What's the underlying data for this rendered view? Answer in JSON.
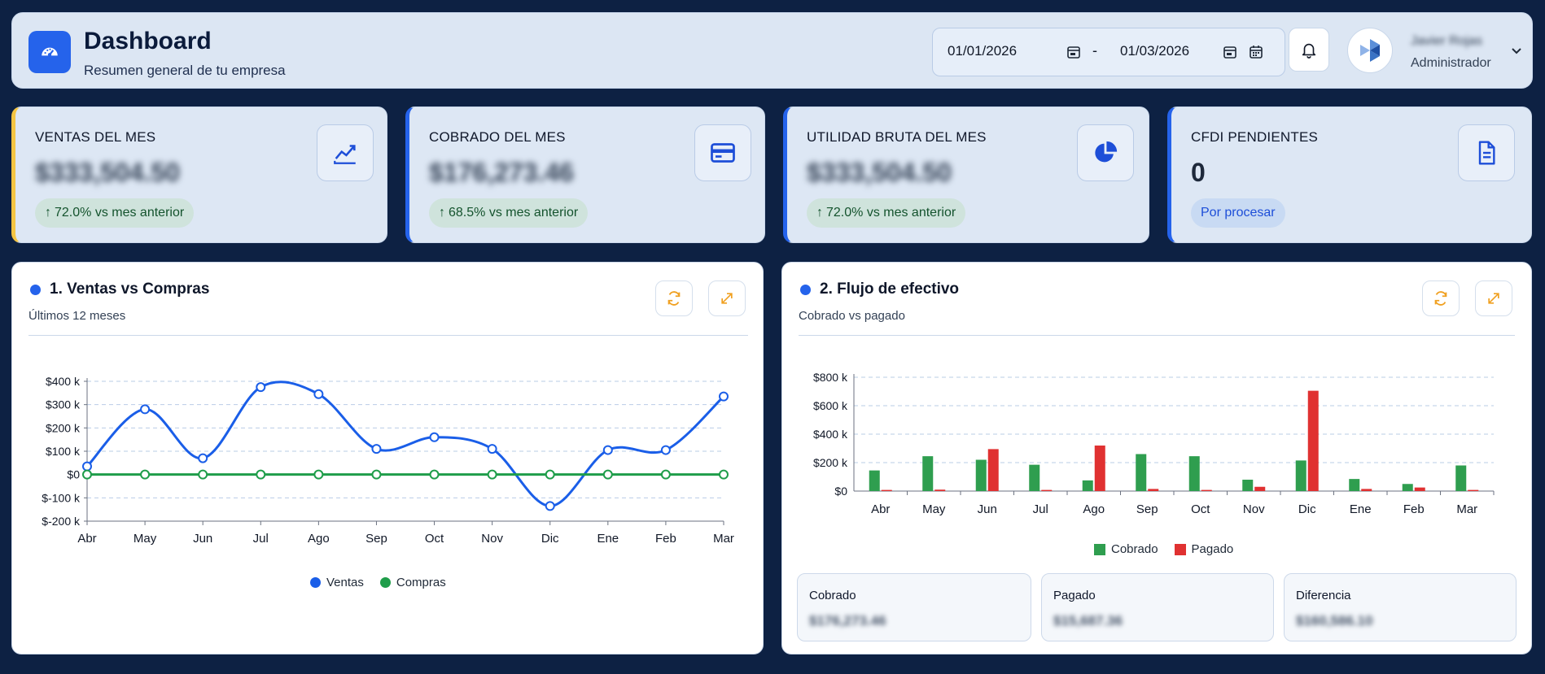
{
  "header": {
    "title": "Dashboard",
    "subtitle": "Resumen general de tu empresa",
    "date_from": "01/01/2026",
    "date_separator": "-",
    "date_to": "01/03/2026",
    "user_name": "Javier Rojas",
    "user_role": "Administrador",
    "logo_icon": "dashboard-gauge-icon",
    "bell_icon": "bell-icon"
  },
  "kpis": [
    {
      "label": "VENTAS DEL MES",
      "value": "$333,504.50",
      "badge": "72.0% vs mes anterior",
      "badge_arrow": "↑",
      "icon": "trend-chart-icon",
      "accent": "#f5c542"
    },
    {
      "label": "COBRADO DEL MES",
      "value": "$176,273.46",
      "badge": "68.5% vs mes anterior",
      "badge_arrow": "↑",
      "icon": "credit-card-icon",
      "accent": "#2563eb"
    },
    {
      "label": "UTILIDAD BRUTA DEL MES",
      "value": "$333,504.50",
      "badge": "72.0% vs mes anterior",
      "badge_arrow": "↑",
      "icon": "pie-chart-icon",
      "accent": "#2563eb"
    },
    {
      "label": "CFDI PENDIENTES",
      "value": "0",
      "badge": "Por procesar",
      "badge_arrow": "",
      "icon": "document-icon",
      "accent": "#2563eb"
    }
  ],
  "cards": {
    "ventas": {
      "title": "1. Ventas vs Compras",
      "subtitle": "Últimos 12 meses"
    },
    "flujo": {
      "title": "2. Flujo de efectivo",
      "subtitle": "Cobrado vs pagado"
    }
  },
  "summary": [
    {
      "label": "Cobrado",
      "value": "$176,273.46"
    },
    {
      "label": "Pagado",
      "value": "$15,687.36"
    },
    {
      "label": "Diferencia",
      "value": "$160,586.10"
    }
  ],
  "colors": {
    "ventas": "#1a5ee8",
    "compras": "#1f9d4a",
    "cobrado": "#2f9e4f",
    "pagado": "#e03131",
    "accent_orange": "#f0a020"
  },
  "chart_data": [
    {
      "type": "line",
      "categories": [
        "Abr",
        "May",
        "Jun",
        "Jul",
        "Ago",
        "Sep",
        "Oct",
        "Nov",
        "Dic",
        "Ene",
        "Feb",
        "Mar"
      ],
      "series": [
        {
          "name": "Ventas",
          "values": [
            35000,
            280000,
            70000,
            375000,
            345000,
            110000,
            160000,
            110000,
            -135000,
            105000,
            105000,
            335000
          ]
        },
        {
          "name": "Compras",
          "values": [
            0,
            0,
            0,
            0,
            0,
            0,
            0,
            0,
            0,
            0,
            0,
            0
          ]
        }
      ],
      "yticks": [
        "$400 k",
        "$300 k",
        "$200 k",
        "$100 k",
        "$0",
        "$-100 k",
        "$-200 k"
      ],
      "ylim": [
        -200000,
        400000
      ],
      "legend_position": "bottom",
      "grid": true
    },
    {
      "type": "bar",
      "categories": [
        "Abr",
        "May",
        "Jun",
        "Jul",
        "Ago",
        "Sep",
        "Oct",
        "Nov",
        "Dic",
        "Ene",
        "Feb",
        "Mar"
      ],
      "series": [
        {
          "name": "Cobrado",
          "values": [
            145000,
            245000,
            220000,
            185000,
            75000,
            260000,
            245000,
            80000,
            215000,
            85000,
            50000,
            180000
          ]
        },
        {
          "name": "Pagado",
          "values": [
            8000,
            10000,
            295000,
            8000,
            320000,
            15000,
            8000,
            30000,
            705000,
            15000,
            25000,
            8000
          ]
        }
      ],
      "yticks": [
        "$800 k",
        "$600 k",
        "$400 k",
        "$200 k",
        "$0"
      ],
      "ylim": [
        0,
        800000
      ],
      "legend_position": "bottom",
      "grid": true
    }
  ]
}
